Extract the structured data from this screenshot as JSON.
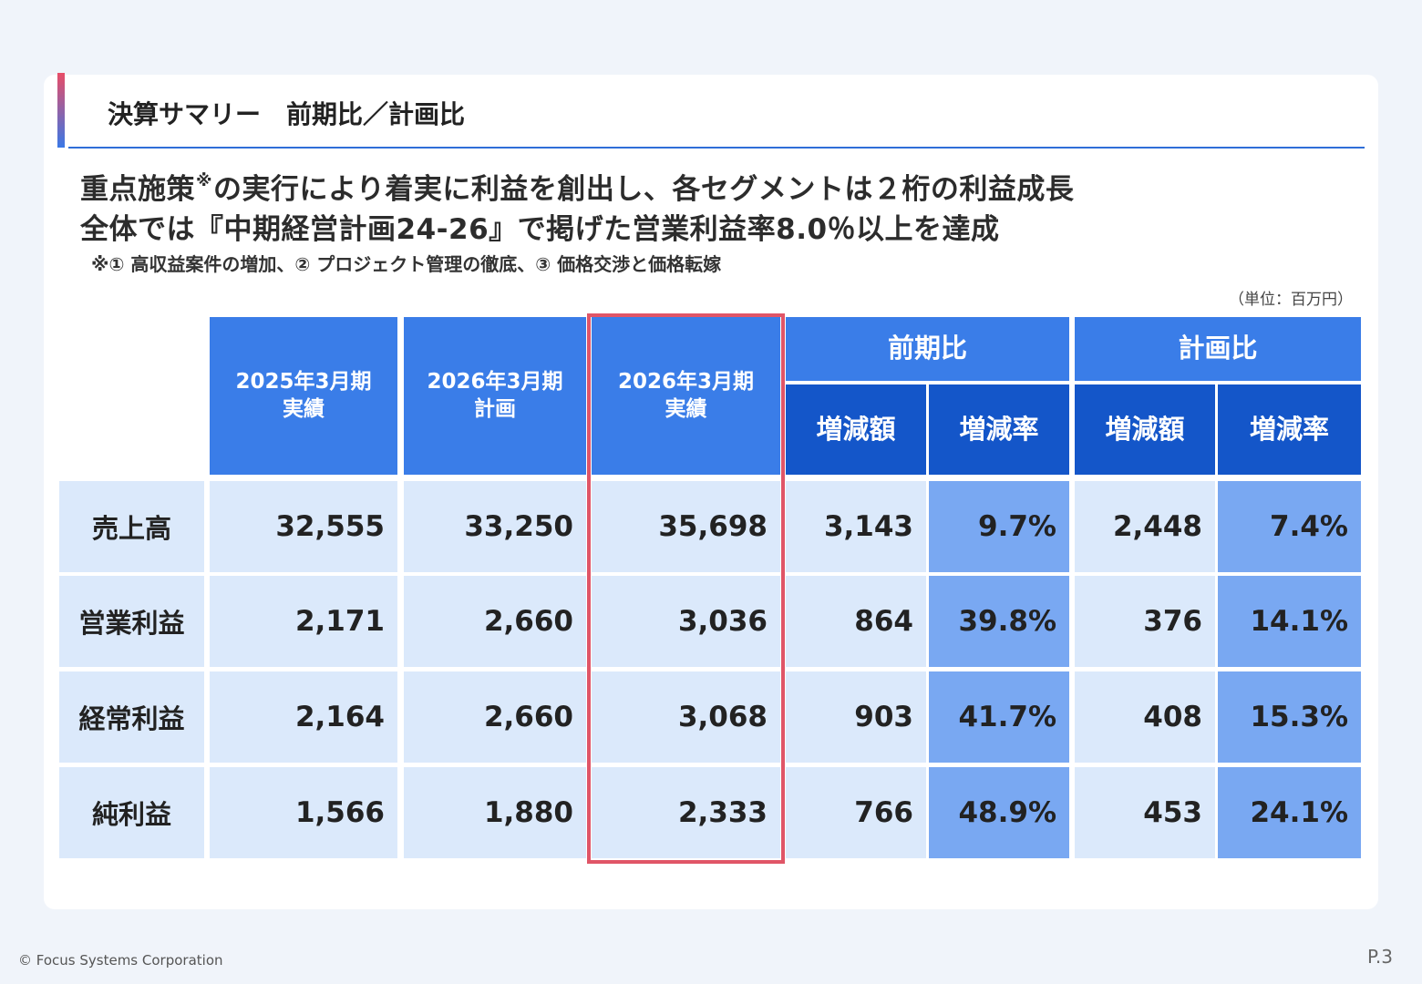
{
  "title": "決算サマリー　前期比／計画比",
  "headline": {
    "line1_a": "重点施策",
    "line1_mark": "※",
    "line1_b": "の実行により着実に利益を創出し、各セグメントは２桁の利益成長",
    "line2": "全体では『中期経営計画24-26』で掲げた営業利益率8.0％以上を達成",
    "footnote": "※① 高収益案件の増加、② プロジェクト管理の徹底、③ 価格交渉と価格転嫁"
  },
  "unit": "（単位：百万円）",
  "table": {
    "col_fy2025": "2025年3月期\n実績",
    "col_fy2026_plan": "2026年3月期\n計画",
    "col_fy2026_actual": "2026年3月期\n実績",
    "group_yoy": "前期比",
    "group_plan": "計画比",
    "sub_change": "増減額",
    "sub_rate": "増減率",
    "rows": [
      {
        "label": "売上高",
        "fy2025": "32,555",
        "plan": "33,250",
        "actual": "35,698",
        "yoy_change": "3,143",
        "yoy_rate": "9.7%",
        "plan_change": "2,448",
        "plan_rate": "7.4%"
      },
      {
        "label": "営業利益",
        "fy2025": "2,171",
        "plan": "2,660",
        "actual": "3,036",
        "yoy_change": "864",
        "yoy_rate": "39.8%",
        "plan_change": "376",
        "plan_rate": "14.1%"
      },
      {
        "label": "経常利益",
        "fy2025": "2,164",
        "plan": "2,660",
        "actual": "3,068",
        "yoy_change": "903",
        "yoy_rate": "41.7%",
        "plan_change": "408",
        "plan_rate": "15.3%"
      },
      {
        "label": "純利益",
        "fy2025": "1,566",
        "plan": "1,880",
        "actual": "2,333",
        "yoy_change": "766",
        "yoy_rate": "48.9%",
        "plan_change": "453",
        "plan_rate": "24.1%"
      }
    ]
  },
  "footer": {
    "copyright": "© Focus Systems Corporation",
    "page": "P.3"
  },
  "colors": {
    "header_blue": "#3a7de8",
    "header_dark_blue": "#1456c9",
    "cell_light": "#dbe9fb",
    "cell_rate": "#79a8f2",
    "highlight_red": "#e05567"
  }
}
